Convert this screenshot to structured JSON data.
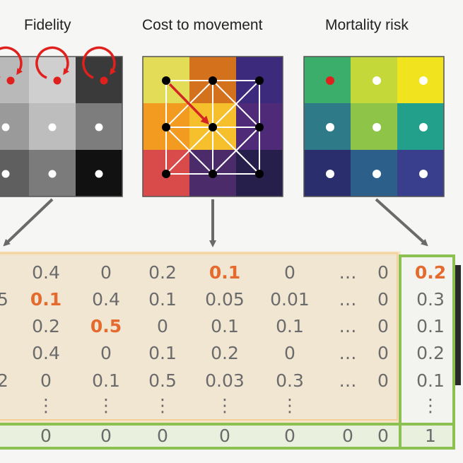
{
  "panels": {
    "fidelity": {
      "title": "Fidelity"
    },
    "cost": {
      "title": "Cost to movement"
    },
    "mortality": {
      "title": "Mortality risk"
    }
  },
  "fidelity_grid": [
    [
      "#b9b9b9",
      "#cfcfcf",
      "#3a3a3a"
    ],
    [
      "#9a9a9a",
      "#bdbdbd",
      "#7d7d7d"
    ],
    [
      "#5f5f5f",
      "#7b7b7b",
      "#111111"
    ]
  ],
  "cost_grid": [
    [
      "#e2dc56",
      "#d4711d",
      "#3c2b7c"
    ],
    [
      "#f39a20",
      "#f5c02c",
      "#4f2a78"
    ],
    [
      "#d94a4a",
      "#4b2b6a",
      "#261f4b"
    ]
  ],
  "mortality_grid": [
    [
      "#3aae6a",
      "#c4d83a",
      "#f1e41f"
    ],
    [
      "#2f7a88",
      "#8ec548",
      "#22a08c"
    ],
    [
      "#2a2e6d",
      "#2c5f8a",
      "#3a3f8d"
    ]
  ],
  "matrix": {
    "rows": [
      [
        {
          "t": "0.4",
          "hl": false
        },
        {
          "t": "0",
          "hl": false
        },
        {
          "t": "0.2",
          "hl": false
        },
        {
          "t": "0.1",
          "hl": true
        },
        {
          "t": "0",
          "hl": false
        },
        {
          "t": "…",
          "hl": false
        },
        {
          "t": "0",
          "hl": false
        }
      ],
      [
        {
          "t": "0.1",
          "hl": true
        },
        {
          "t": "0.4",
          "hl": false
        },
        {
          "t": "0.1",
          "hl": false
        },
        {
          "t": "0.05",
          "hl": false
        },
        {
          "t": "0.01",
          "hl": false
        },
        {
          "t": "…",
          "hl": false
        },
        {
          "t": "0",
          "hl": false
        }
      ],
      [
        {
          "t": "0.2",
          "hl": false
        },
        {
          "t": "0.5",
          "hl": true
        },
        {
          "t": "0",
          "hl": false
        },
        {
          "t": "0.1",
          "hl": false
        },
        {
          "t": "0.1",
          "hl": false
        },
        {
          "t": "…",
          "hl": false
        },
        {
          "t": "0",
          "hl": false
        }
      ],
      [
        {
          "t": "0.4",
          "hl": false
        },
        {
          "t": "0",
          "hl": false
        },
        {
          "t": "0.1",
          "hl": false
        },
        {
          "t": "0.2",
          "hl": false
        },
        {
          "t": "0",
          "hl": false
        },
        {
          "t": "…",
          "hl": false
        },
        {
          "t": "0",
          "hl": false
        }
      ],
      [
        {
          "t": "0",
          "hl": false
        },
        {
          "t": "0.1",
          "hl": false
        },
        {
          "t": "0.5",
          "hl": false
        },
        {
          "t": "0.03",
          "hl": false
        },
        {
          "t": "0.3",
          "hl": false
        },
        {
          "t": "…",
          "hl": false
        },
        {
          "t": "0",
          "hl": false
        }
      ],
      [
        {
          "t": "⋮",
          "hl": false
        },
        {
          "t": "⋮",
          "hl": false
        },
        {
          "t": "⋮",
          "hl": false
        },
        {
          "t": "⋮",
          "hl": false
        },
        {
          "t": "⋮",
          "hl": false
        },
        {
          "t": "",
          "hl": false
        },
        {
          "t": "",
          "hl": false
        }
      ]
    ],
    "partial_left": [
      "",
      "5",
      "",
      "",
      "2",
      ""
    ],
    "last_col": [
      {
        "t": "0.2",
        "hl": true
      },
      {
        "t": "0.3",
        "hl": false
      },
      {
        "t": "0.1",
        "hl": false
      },
      {
        "t": "0.2",
        "hl": false
      },
      {
        "t": "0.1",
        "hl": false
      },
      {
        "t": "⋮",
        "hl": false
      }
    ],
    "bottom_row": [
      "0",
      "0",
      "0",
      "0",
      "0",
      "0",
      "0"
    ],
    "bottom_last": "1"
  },
  "colors": {
    "highlight": "#e46a2e",
    "matrix_text": "#6b6b6b",
    "matrix_bg": "#f1e6d2",
    "green_border": "#8cc152",
    "arrow": "#6a6a6a",
    "fidelity_arrow": "#e0201c",
    "cost_arrow": "#d42424"
  },
  "icons": {
    "loop_arrow": "circular-arrow-icon",
    "down_arrow": "arrow-down-icon",
    "move_arrow": "diagonal-arrow-icon"
  }
}
